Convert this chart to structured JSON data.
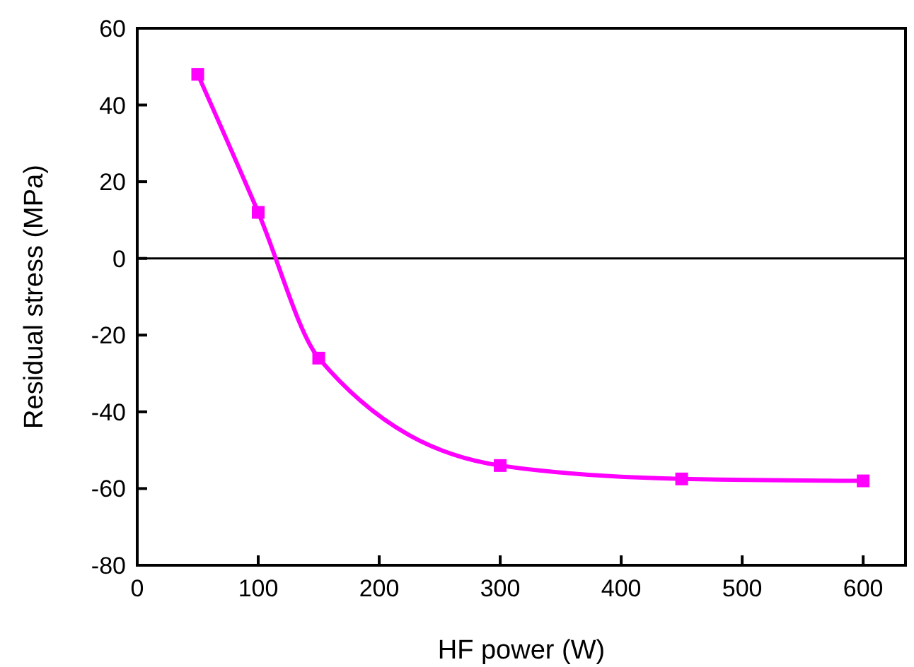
{
  "chart_data": {
    "type": "line",
    "xlabel": "HF power (W)",
    "ylabel": "Residual stress (MPa)",
    "x": [
      50,
      100,
      150,
      300,
      450,
      600
    ],
    "series": [
      {
        "color": "#ff00ff",
        "values": [
          48,
          12,
          -26,
          -54,
          -57.5,
          -58
        ]
      }
    ],
    "marker": "square",
    "line_style": "solid",
    "grid": false,
    "xlim": [
      0,
      635
    ],
    "xticks": [
      0,
      100,
      200,
      300,
      400,
      500,
      600
    ],
    "ylim": [
      -80,
      60
    ],
    "yticks": [
      -80,
      -60,
      -40,
      -20,
      0,
      20,
      40,
      60
    ],
    "ref_lines": [
      {
        "axis": "y",
        "value": 0,
        "color": "#000000"
      }
    ]
  }
}
